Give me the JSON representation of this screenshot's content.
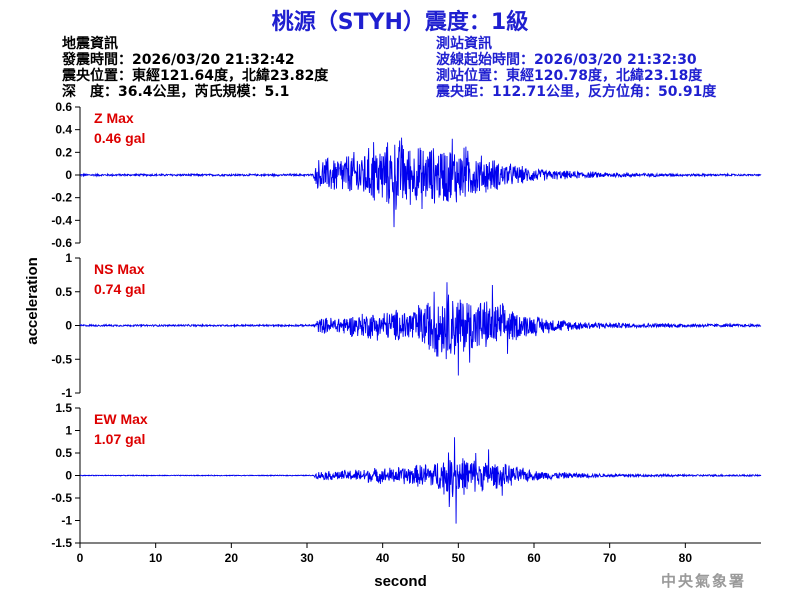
{
  "title": "桃源（STYH）震度：1級",
  "earthquake_info": {
    "heading": "地震資訊",
    "origin_time": "發震時間：2026/03/20 21:32:42",
    "epicenter": "震央位置：東經121.64度，北緯23.82度",
    "depth_magnitude": "深　度：36.4公里，芮氏規模：5.1"
  },
  "station_info": {
    "heading": "測站資訊",
    "wave_start": "波線起始時間：2026/03/20 21:32:30",
    "station_location": "測站位置：東經120.78度，北緯23.18度",
    "distance_azimuth": "震央距：112.71公里，反方位角：50.91度"
  },
  "agency": "中央氣象署",
  "colors": {
    "trace": "#0000ee",
    "title": "#1f1fd0",
    "label": "#dd0000",
    "axis": "#000000"
  },
  "chart_data": {
    "type": "line",
    "xlabel": "second",
    "ylabel": "acceleration",
    "xlim": [
      0,
      90
    ],
    "x_ticks": [
      0,
      10,
      20,
      30,
      40,
      50,
      60,
      70,
      80
    ],
    "grid": false,
    "panels": [
      {
        "name": "Z",
        "label_line1": "Z Max",
        "label_line2": "0.46 gal",
        "ylim": [
          -0.6,
          0.6
        ],
        "y_ticks": [
          -0.6,
          -0.4,
          -0.2,
          0,
          0.2,
          0.4,
          0.6
        ],
        "y_tick_labels": [
          "-0.6",
          "-0.4",
          "-0.2",
          "0",
          "0.2",
          "0.4",
          "0.6"
        ],
        "max": 0.46,
        "p_arrival": 31,
        "envelope": [
          [
            0,
            0.01
          ],
          [
            30.8,
            0.01
          ],
          [
            31.5,
            0.16
          ],
          [
            35,
            0.2
          ],
          [
            38,
            0.26
          ],
          [
            40,
            0.3
          ],
          [
            42,
            0.36
          ],
          [
            44,
            0.28
          ],
          [
            47,
            0.28
          ],
          [
            50,
            0.3
          ],
          [
            52,
            0.22
          ],
          [
            55,
            0.15
          ],
          [
            58,
            0.09
          ],
          [
            62,
            0.05
          ],
          [
            66,
            0.035
          ],
          [
            70,
            0.025
          ],
          [
            80,
            0.012
          ],
          [
            90,
            0.008
          ]
        ],
        "peaks": [
          [
            41.5,
            -0.46
          ],
          [
            42.5,
            0.33
          ],
          [
            49.2,
            0.32
          ],
          [
            38.8,
            0.29
          ],
          [
            45.2,
            -0.3
          ],
          [
            51,
            0.25
          ]
        ]
      },
      {
        "name": "NS",
        "label_line1": "NS Max",
        "label_line2": "0.74 gal",
        "ylim": [
          -1,
          1
        ],
        "y_ticks": [
          -1,
          -0.5,
          0,
          0.5,
          1
        ],
        "y_tick_labels": [
          "-1",
          "-0.5",
          "0",
          "0.5",
          "1"
        ],
        "max": 0.74,
        "p_arrival": 31,
        "envelope": [
          [
            0,
            0.015
          ],
          [
            30.8,
            0.015
          ],
          [
            31.5,
            0.12
          ],
          [
            35,
            0.16
          ],
          [
            38,
            0.22
          ],
          [
            41,
            0.25
          ],
          [
            44,
            0.3
          ],
          [
            47,
            0.5
          ],
          [
            49,
            0.55
          ],
          [
            52,
            0.45
          ],
          [
            55,
            0.4
          ],
          [
            58,
            0.22
          ],
          [
            62,
            0.12
          ],
          [
            66,
            0.07
          ],
          [
            70,
            0.045
          ],
          [
            80,
            0.03
          ],
          [
            90,
            0.022
          ]
        ],
        "peaks": [
          [
            50,
            -0.74
          ],
          [
            48.5,
            0.64
          ],
          [
            54.5,
            0.6
          ],
          [
            51.5,
            -0.55
          ],
          [
            46.8,
            0.5
          ],
          [
            56.5,
            -0.42
          ]
        ]
      },
      {
        "name": "EW",
        "label_line1": "EW Max",
        "label_line2": "1.07 gal",
        "ylim": [
          -1.5,
          1.5
        ],
        "y_ticks": [
          -1.5,
          -1,
          -0.5,
          0,
          0.5,
          1,
          1.5
        ],
        "y_tick_labels": [
          "-1.5",
          "-1",
          "-0.5",
          "0",
          "0.5",
          "1",
          "1.5"
        ],
        "max": 1.07,
        "p_arrival": 31,
        "envelope": [
          [
            0,
            0.01
          ],
          [
            30.8,
            0.01
          ],
          [
            31.5,
            0.1
          ],
          [
            35,
            0.13
          ],
          [
            38,
            0.18
          ],
          [
            41,
            0.2
          ],
          [
            44,
            0.25
          ],
          [
            47,
            0.35
          ],
          [
            49,
            0.6
          ],
          [
            51,
            0.45
          ],
          [
            54,
            0.35
          ],
          [
            57,
            0.25
          ],
          [
            60,
            0.12
          ],
          [
            65,
            0.07
          ],
          [
            70,
            0.04
          ],
          [
            80,
            0.025
          ],
          [
            90,
            0.02
          ]
        ],
        "peaks": [
          [
            49.7,
            -1.07
          ],
          [
            49.5,
            0.85
          ],
          [
            54,
            0.58
          ],
          [
            48.8,
            -0.7
          ],
          [
            52.3,
            0.5
          ],
          [
            55.8,
            -0.45
          ]
        ]
      }
    ]
  }
}
